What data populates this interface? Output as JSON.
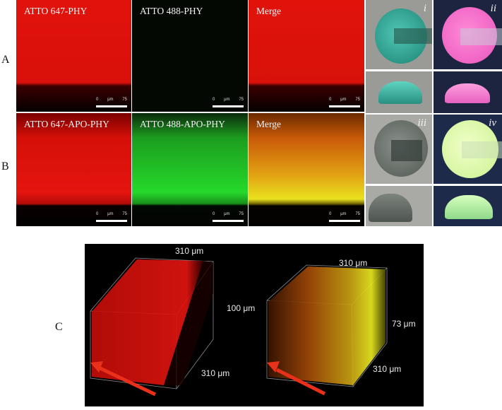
{
  "rows": {
    "a": "A",
    "b": "B",
    "c": "C"
  },
  "panels_a": [
    {
      "caption": "ATTO 647-PHY"
    },
    {
      "caption": "ATTO 488-PHY"
    },
    {
      "caption": "Merge"
    }
  ],
  "panels_b": [
    {
      "caption": "ATTO 647-APO-PHY"
    },
    {
      "caption": "ATTO 488-APO-PHY"
    },
    {
      "caption": "Merge"
    }
  ],
  "scale": {
    "left": "0",
    "mid": "μm",
    "right": "75"
  },
  "photos": {
    "i": "i",
    "ii": "ii",
    "iii": "iii",
    "iv": "iv"
  },
  "volume_left": {
    "top": "310 μm",
    "depth": "100 μm",
    "bottom": "310 μm"
  },
  "volume_right": {
    "top": "310 μm",
    "depth": "73 μm",
    "bottom": "310 μm"
  },
  "colors": {
    "red": "#e4140f",
    "green": "#25d92a",
    "yellow": "#e8e21e",
    "teal": "#3fb4a4",
    "pink": "#f276c9"
  }
}
